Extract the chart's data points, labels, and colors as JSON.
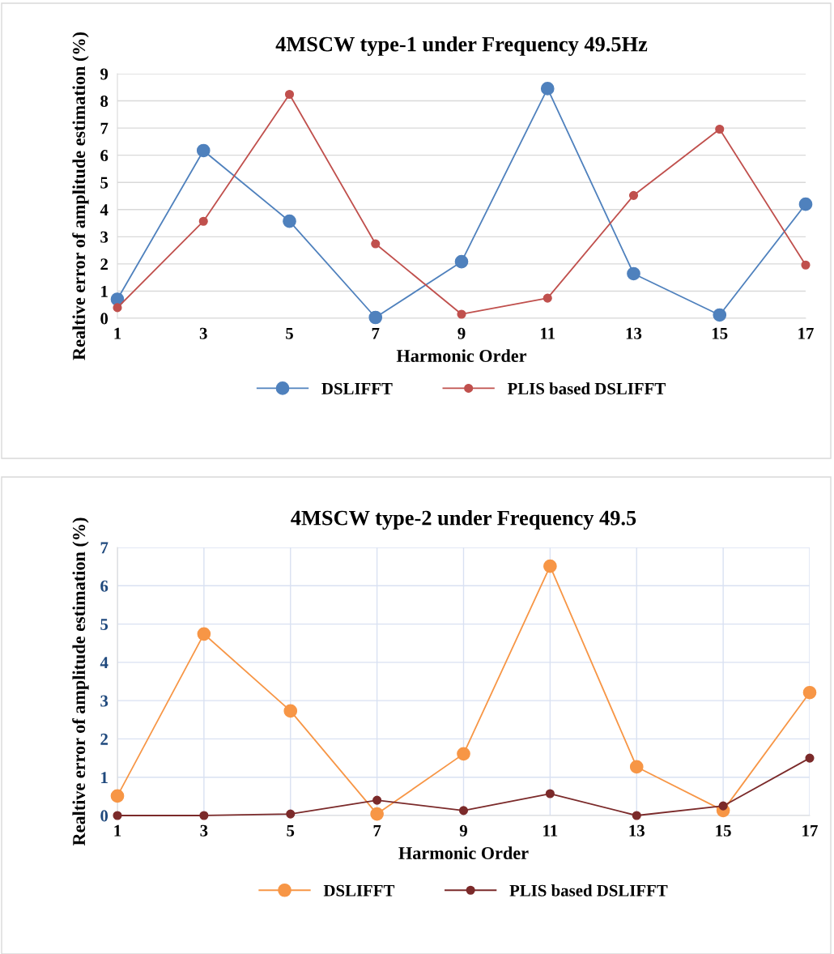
{
  "chart_data": [
    {
      "type": "line",
      "title": "4MSCW type-1 under Frequency 49.5Hz",
      "xlabel": "Harmonic Order",
      "ylabel": "Realtive error of amplitude estimation (%)",
      "categories": [
        "1",
        "3",
        "5",
        "7",
        "9",
        "11",
        "13",
        "15",
        "17"
      ],
      "series": [
        {
          "name": "DSLIFFT",
          "color": "#4f81bd",
          "values": [
            0.7,
            6.17,
            3.57,
            0.03,
            2.08,
            8.45,
            1.64,
            0.12,
            4.2
          ]
        },
        {
          "name": "PLIS based DSLIFFT",
          "color": "#c0504d",
          "values": [
            0.39,
            3.57,
            8.24,
            2.74,
            0.15,
            0.74,
            4.52,
            6.96,
            1.96
          ]
        }
      ],
      "ylim": [
        0,
        9
      ],
      "yticks": [
        0,
        1,
        2,
        3,
        4,
        5,
        6,
        7,
        8,
        9
      ],
      "grid": "y",
      "legend": "bottom",
      "marker": "circle",
      "line_style": "solid"
    },
    {
      "type": "line",
      "title": "4MSCW type-2 under Frequency 49.5",
      "xlabel": "Harmonic Order",
      "ylabel": "Realtive error of amplitude estimation (%)",
      "categories": [
        "1",
        "3",
        "5",
        "7",
        "9",
        "11",
        "13",
        "15",
        "17"
      ],
      "series": [
        {
          "name": "DSLIFFT",
          "color": "#f79646",
          "values": [
            0.51,
            4.74,
            2.73,
            0.04,
            1.61,
            6.51,
            1.27,
            0.13,
            3.21
          ]
        },
        {
          "name": "PLIS based DSLIFFT",
          "color": "#7b2a2a",
          "values": [
            0,
            0,
            0.04,
            0.4,
            0.13,
            0.57,
            0,
            0.25,
            1.5
          ]
        }
      ],
      "ylim": [
        0,
        7
      ],
      "yticks": [
        0,
        1,
        2,
        3,
        4,
        5,
        6,
        7
      ],
      "grid": true,
      "legend": "bottom",
      "marker": "circle",
      "line_style": "solid"
    }
  ]
}
